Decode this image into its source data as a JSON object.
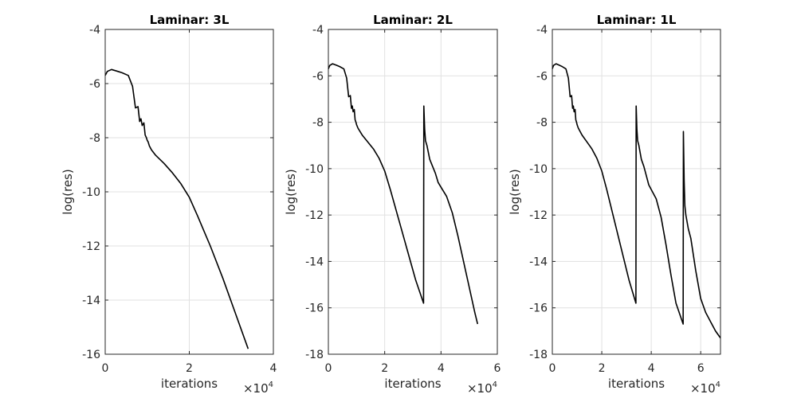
{
  "chart_data": [
    {
      "type": "line",
      "title": "Laminar: 3L",
      "xlabel": "iterations",
      "ylabel": "log(res)",
      "x_exponent_base": "×10",
      "x_exponent": "4",
      "xlim": [
        0,
        4
      ],
      "ylim": [
        -16,
        -4
      ],
      "xticks": [
        "0",
        "2",
        "4"
      ],
      "xtick_values": [
        0,
        2,
        4
      ],
      "yticks": [
        "-4",
        "-6",
        "-8",
        "-10",
        "-12",
        "-14",
        "-16"
      ],
      "ytick_values": [
        -4,
        -6,
        -8,
        -10,
        -12,
        -14,
        -16
      ],
      "grid": true,
      "series": [
        {
          "color": "#000000",
          "x": [
            0,
            0.05,
            0.15,
            0.3,
            0.4,
            0.55,
            0.65,
            0.72,
            0.78,
            0.82,
            0.85,
            0.88,
            0.92,
            0.95,
            0.98,
            1.0,
            1.02,
            1.05,
            1.1,
            1.2,
            1.3,
            1.4,
            1.6,
            1.8,
            2.0,
            2.2,
            2.5,
            2.8,
            3.1,
            3.4
          ],
          "y": [
            -5.7,
            -5.55,
            -5.48,
            -5.55,
            -5.6,
            -5.7,
            -6.1,
            -6.9,
            -6.85,
            -7.4,
            -7.3,
            -7.55,
            -7.45,
            -7.9,
            -8.0,
            -8.1,
            -8.15,
            -8.3,
            -8.45,
            -8.65,
            -8.8,
            -8.95,
            -9.3,
            -9.7,
            -10.2,
            -10.9,
            -12.0,
            -13.2,
            -14.5,
            -15.8
          ]
        }
      ]
    },
    {
      "type": "line",
      "title": "Laminar: 2L",
      "xlabel": "iterations",
      "ylabel": "log(res)",
      "x_exponent_base": "×10",
      "x_exponent": "4",
      "xlim": [
        0,
        6
      ],
      "ylim": [
        -18,
        -4
      ],
      "xticks": [
        "0",
        "2",
        "4",
        "6"
      ],
      "xtick_values": [
        0,
        2,
        4,
        6
      ],
      "yticks": [
        "-4",
        "-6",
        "-8",
        "-10",
        "-12",
        "-14",
        "-16",
        "-18"
      ],
      "ytick_values": [
        -4,
        -6,
        -8,
        -10,
        -12,
        -14,
        -16,
        -18
      ],
      "grid": true,
      "series": [
        {
          "color": "#000000",
          "x": [
            0,
            0.05,
            0.15,
            0.3,
            0.4,
            0.55,
            0.65,
            0.72,
            0.78,
            0.82,
            0.85,
            0.88,
            0.92,
            0.95,
            0.98,
            1.0,
            1.05,
            1.2,
            1.4,
            1.6,
            1.8,
            2.0,
            2.2,
            2.5,
            2.8,
            3.1,
            3.38,
            3.39,
            3.42,
            3.45,
            3.5,
            3.55,
            3.6,
            3.7,
            3.8,
            3.9,
            4.0,
            4.2,
            4.4,
            4.6,
            4.8,
            5.0,
            5.2,
            5.3
          ],
          "y": [
            -5.7,
            -5.55,
            -5.48,
            -5.55,
            -5.6,
            -5.7,
            -6.1,
            -6.9,
            -6.85,
            -7.4,
            -7.3,
            -7.55,
            -7.45,
            -7.9,
            -8.0,
            -8.1,
            -8.25,
            -8.55,
            -8.85,
            -9.15,
            -9.55,
            -10.1,
            -10.9,
            -12.2,
            -13.5,
            -14.8,
            -15.8,
            -7.3,
            -8.3,
            -8.8,
            -9.0,
            -9.3,
            -9.6,
            -9.9,
            -10.2,
            -10.6,
            -10.8,
            -11.2,
            -11.9,
            -12.9,
            -14.0,
            -15.1,
            -16.2,
            -16.7
          ]
        }
      ]
    },
    {
      "type": "line",
      "title": "Laminar: 1L",
      "xlabel": "iterations",
      "ylabel": "log(res)",
      "x_exponent_base": "×10",
      "x_exponent": "4",
      "xlim": [
        0,
        6.8
      ],
      "ylim": [
        -18,
        -4
      ],
      "xticks": [
        "0",
        "2",
        "4",
        "6"
      ],
      "xtick_values": [
        0,
        2,
        4,
        6
      ],
      "yticks": [
        "-4",
        "-6",
        "-8",
        "-10",
        "-12",
        "-14",
        "-16",
        "-18"
      ],
      "ytick_values": [
        -4,
        -6,
        -8,
        -10,
        -12,
        -14,
        -16,
        -18
      ],
      "grid": true,
      "series": [
        {
          "color": "#000000",
          "x": [
            0,
            0.05,
            0.15,
            0.3,
            0.4,
            0.55,
            0.65,
            0.72,
            0.78,
            0.82,
            0.85,
            0.88,
            0.92,
            0.95,
            0.98,
            1.0,
            1.05,
            1.2,
            1.4,
            1.6,
            1.8,
            2.0,
            2.2,
            2.5,
            2.8,
            3.1,
            3.38,
            3.39,
            3.42,
            3.45,
            3.5,
            3.55,
            3.6,
            3.7,
            3.8,
            3.9,
            4.0,
            4.2,
            4.4,
            4.6,
            4.8,
            5.0,
            5.29,
            5.3,
            5.33,
            5.36,
            5.4,
            5.5,
            5.6,
            5.8,
            6.0,
            6.2,
            6.4,
            6.6,
            6.8
          ],
          "y": [
            -5.7,
            -5.55,
            -5.48,
            -5.55,
            -5.6,
            -5.7,
            -6.1,
            -6.9,
            -6.85,
            -7.4,
            -7.3,
            -7.55,
            -7.45,
            -7.9,
            -8.0,
            -8.1,
            -8.25,
            -8.55,
            -8.85,
            -9.15,
            -9.55,
            -10.1,
            -10.9,
            -12.2,
            -13.5,
            -14.8,
            -15.8,
            -7.3,
            -8.3,
            -8.8,
            -9.0,
            -9.3,
            -9.6,
            -9.9,
            -10.3,
            -10.7,
            -10.9,
            -11.3,
            -12.1,
            -13.3,
            -14.6,
            -15.8,
            -16.7,
            -8.4,
            -10.5,
            -11.6,
            -12.0,
            -12.6,
            -13.0,
            -14.4,
            -15.6,
            -16.2,
            -16.6,
            -17.0,
            -17.3
          ]
        }
      ]
    }
  ]
}
